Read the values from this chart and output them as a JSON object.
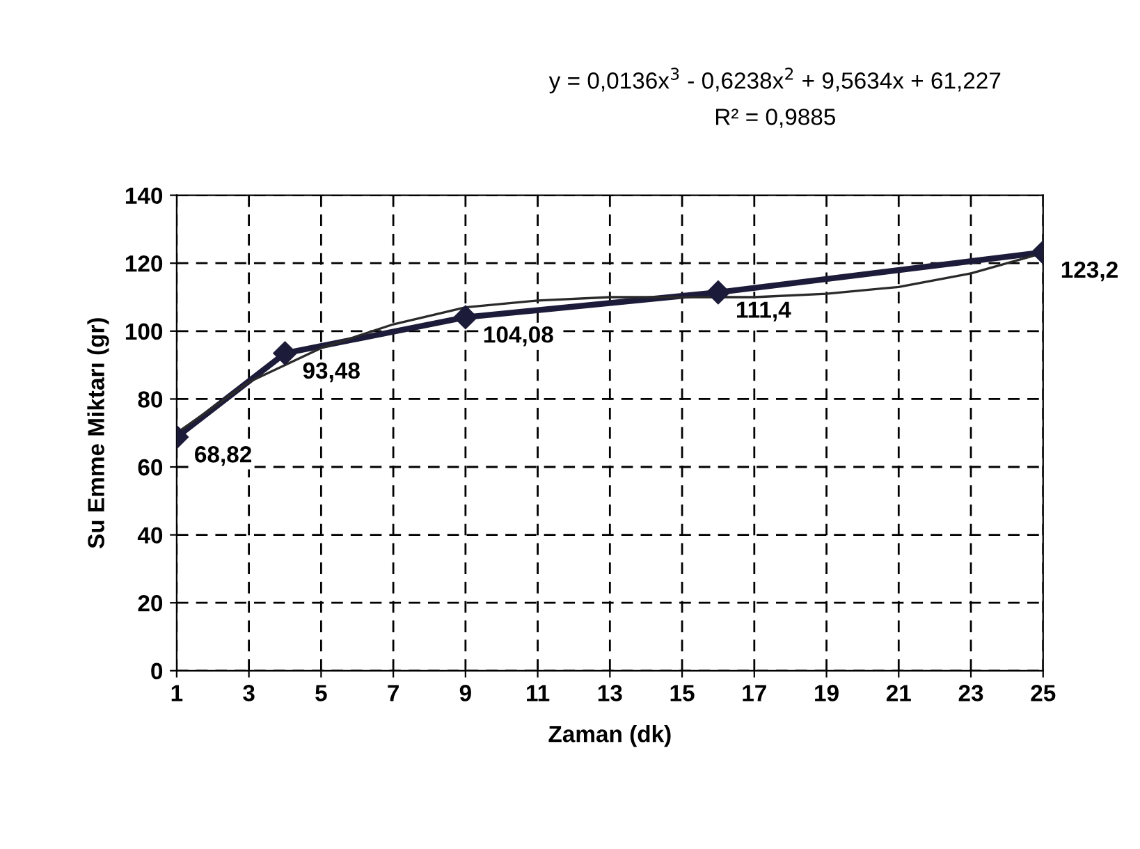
{
  "chart_data": {
    "type": "line",
    "xlabel": "Zaman (dk)",
    "ylabel": "Su Emme Miktarı (gr)",
    "xlim": [
      1,
      25
    ],
    "xticks": [
      1,
      3,
      5,
      7,
      9,
      11,
      13,
      15,
      17,
      19,
      21,
      23,
      25
    ],
    "ylim": [
      0,
      140
    ],
    "yticks": [
      0,
      20,
      40,
      60,
      80,
      100,
      120,
      140
    ],
    "grid": true,
    "legend": false,
    "annotations": [
      "y = 0,0136x$^{3}$ - 0,6238x$^{2}$ + 9,5634x + 61,227",
      "R² = 0,9885"
    ],
    "series": [
      {
        "color": "#1c1c3a",
        "marker": "diamond",
        "x": [
          1,
          4,
          9,
          16,
          25
        ],
        "values": [
          68.82,
          93.48,
          104.08,
          111.4,
          123.2
        ],
        "value_labels": [
          "68,82",
          "93,48",
          "104,08",
          "111,4",
          "123,2"
        ]
      },
      {
        "color": "#2a2a2a",
        "marker": "none",
        "x": [
          1,
          3,
          5,
          7,
          9,
          11,
          13,
          15,
          17,
          19,
          21,
          23,
          25
        ],
        "values": [
          70,
          85,
          95,
          102,
          107,
          109,
          110,
          110,
          110,
          111,
          113,
          117,
          123
        ]
      }
    ]
  }
}
